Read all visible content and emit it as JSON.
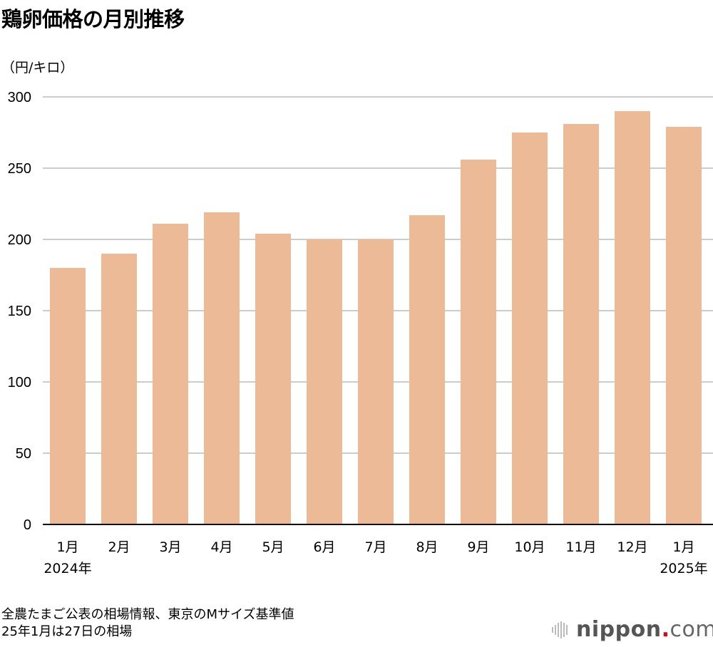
{
  "chart_data": {
    "type": "bar",
    "title": "鶏卵価格の月別推移",
    "ylabel": "（円/キロ）",
    "xlabel": "",
    "categories": [
      "1月",
      "2月",
      "3月",
      "4月",
      "5月",
      "6月",
      "7月",
      "8月",
      "9月",
      "10月",
      "11月",
      "12月",
      "1月"
    ],
    "year_labels": [
      {
        "index": 0,
        "label": "2024年"
      },
      {
        "index": 12,
        "label": "2025年"
      }
    ],
    "values": [
      180,
      190,
      211,
      219,
      204,
      200,
      200,
      217,
      256,
      275,
      281,
      290,
      279
    ],
    "ylim": [
      0,
      300
    ],
    "yticks": [
      0,
      50,
      100,
      150,
      200,
      250,
      300
    ],
    "grid": true,
    "bar_color": "#edba98",
    "grid_color": "#cccccc"
  },
  "notes": [
    "全農たまご公表の相場情報、東京のMサイズ基準値",
    "25年1月は27日の相場"
  ],
  "logo": {
    "text": "nippon",
    "dot": ".",
    "suffix": "com",
    "dot_color": "#e60012"
  }
}
